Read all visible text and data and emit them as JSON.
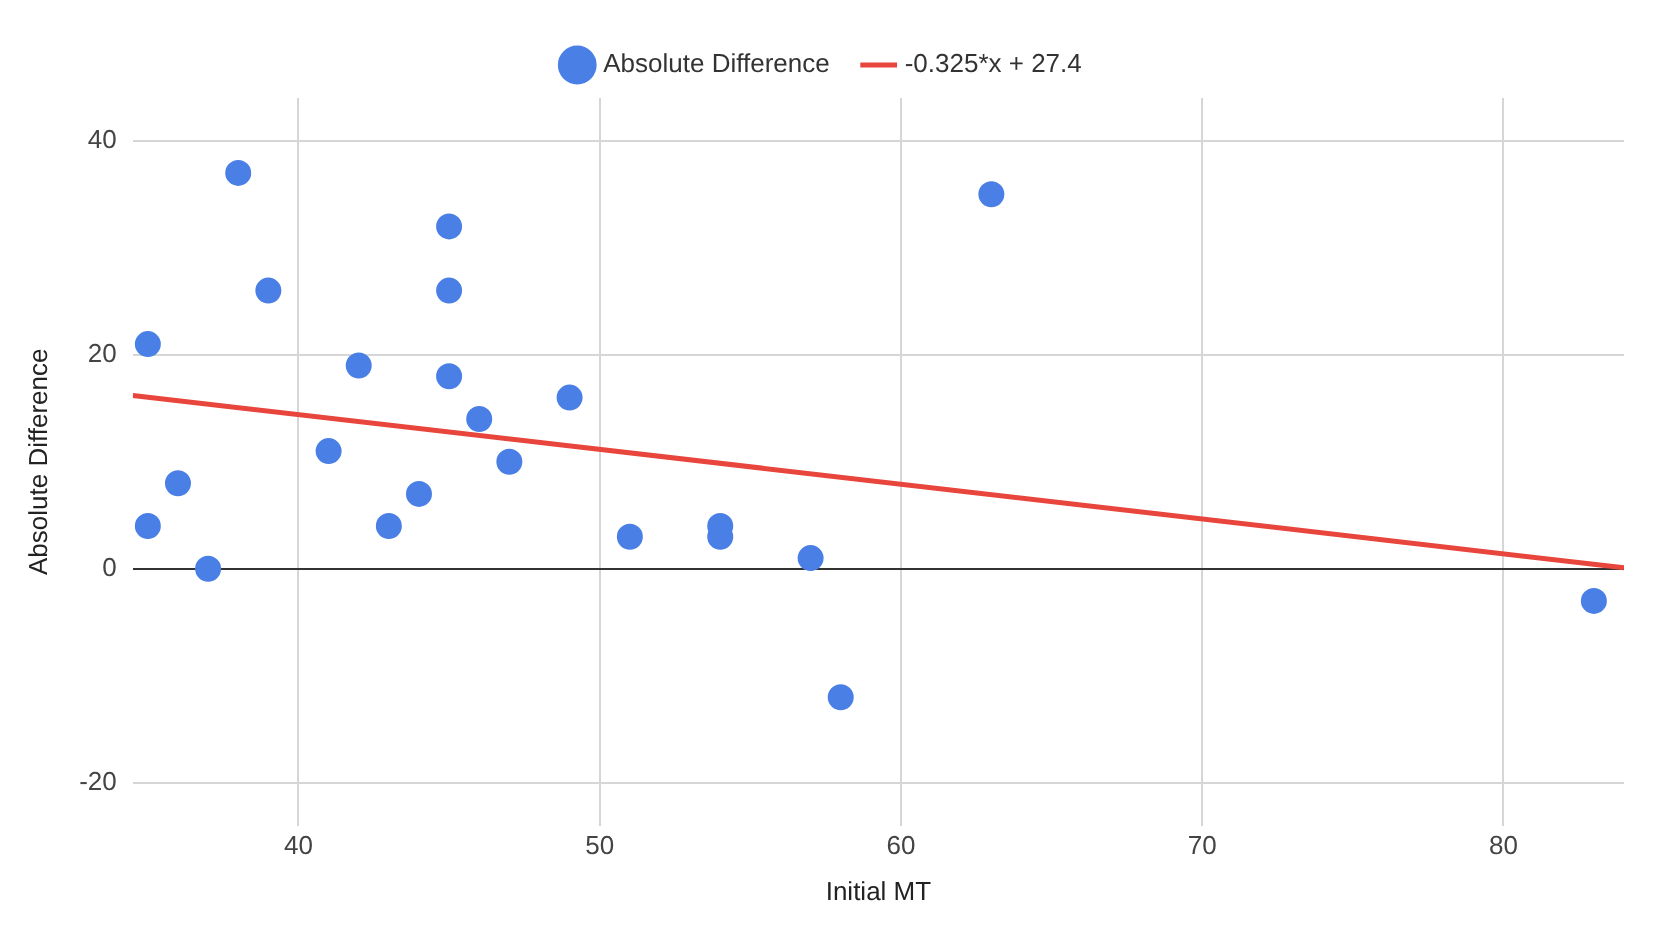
{
  "chart_data": {
    "type": "scatter",
    "xlabel": "Initial MT",
    "ylabel": "Absolute Difference",
    "xlim": [
      34.5,
      84
    ],
    "ylim": [
      -24,
      44
    ],
    "xticks": [
      40,
      50,
      60,
      70,
      80
    ],
    "yticks": [
      -20,
      0,
      20,
      40
    ],
    "grid": true,
    "legend": "top",
    "series": [
      {
        "name": "Absolute Difference",
        "type": "scatter",
        "marker": "circle",
        "color": "#4a7fe6",
        "x": [
          35,
          35,
          36,
          37,
          38,
          39,
          41,
          42,
          43,
          44,
          45,
          45,
          45,
          46,
          47,
          49,
          51,
          54,
          54,
          57,
          58,
          63,
          83
        ],
        "values": [
          4,
          21,
          8,
          0,
          37,
          26,
          11,
          19,
          4,
          7,
          32,
          26,
          18,
          14,
          10,
          16,
          3,
          4,
          3,
          1,
          -12,
          35,
          -3
        ]
      },
      {
        "name": "-0.325*x + 27.4",
        "type": "line",
        "marker": "none",
        "color": "#e8453c",
        "x": [
          34.5,
          84
        ],
        "values": [
          16.2,
          0.1
        ]
      }
    ]
  }
}
